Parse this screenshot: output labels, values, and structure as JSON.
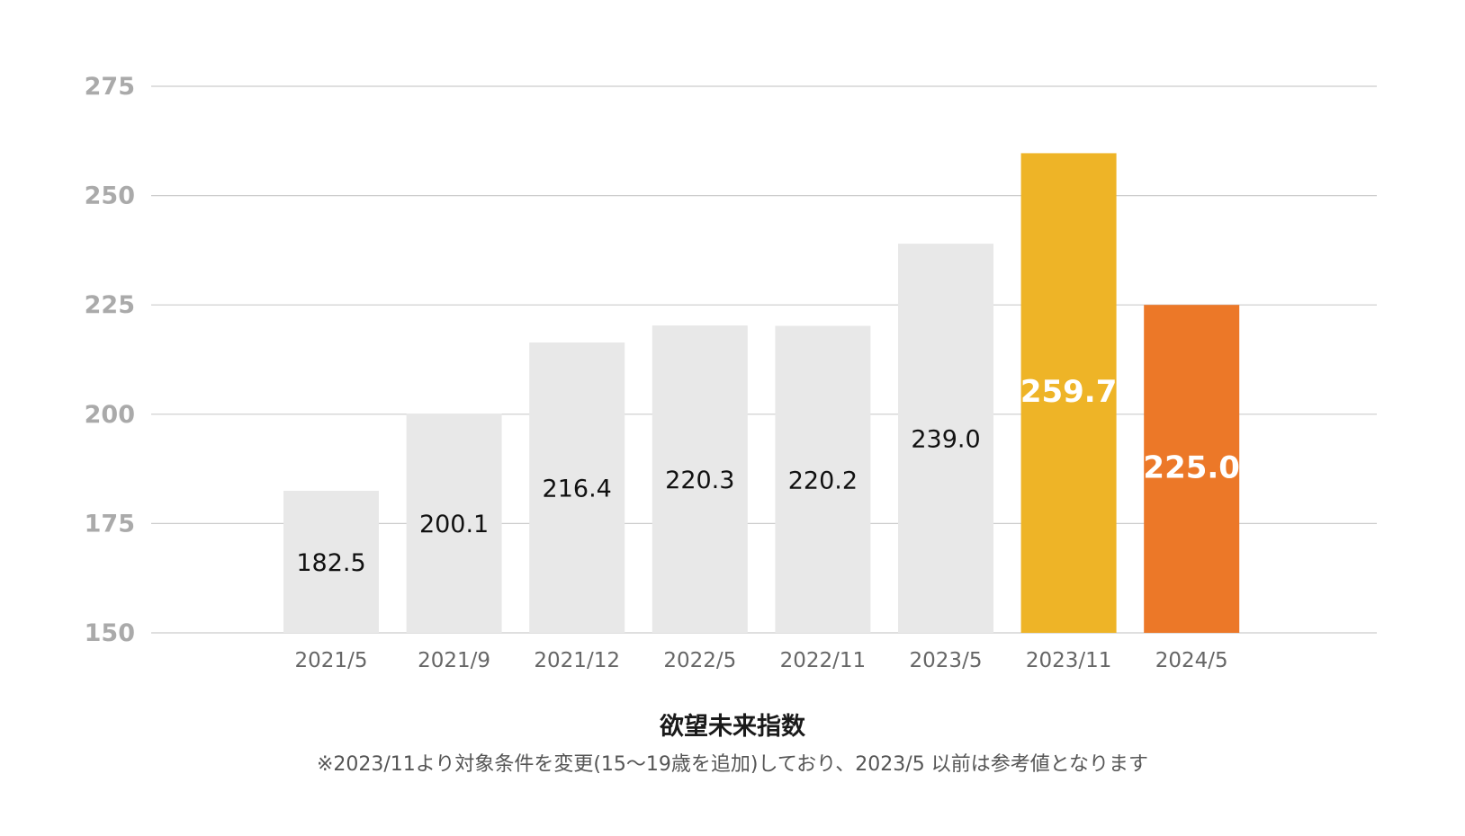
{
  "chart_data": {
    "type": "bar",
    "title": "欲望未来指数",
    "note": "※2023/11より対象条件を変更(15〜19歳を追加)しており、2023/5 以前は参考値となります",
    "categories": [
      "2021/5",
      "2021/9",
      "2021/12",
      "2022/5",
      "2022/11",
      "2023/5",
      "2023/11",
      "2024/5"
    ],
    "values": [
      182.5,
      200.1,
      216.4,
      220.3,
      220.2,
      239.0,
      259.7,
      225.0
    ],
    "value_labels": [
      "182.5",
      "200.1",
      "216.4",
      "220.3",
      "220.2",
      "239.0",
      "259.7",
      "225.0"
    ],
    "ylim": [
      150,
      275
    ],
    "yticks": [
      150,
      175,
      200,
      225,
      250,
      275
    ],
    "ytick_labels": [
      "150",
      "175",
      "200",
      "225",
      "250",
      "275"
    ],
    "grid": true,
    "legend": "none",
    "xlabel": "",
    "ylabel": "",
    "colors": {
      "bar_default": "#e8e8e8",
      "bar_2023_11": "#eeb427",
      "bar_2024_5": "#ec7828",
      "label_default": "#111111",
      "label_highlight": "#ffffff",
      "grid": "#cccccc",
      "tick_text": "#aaaaaa",
      "category_text": "#666666"
    },
    "highlight": {
      "2023/11": "bar_2023_11",
      "2024/5": "bar_2024_5"
    }
  }
}
